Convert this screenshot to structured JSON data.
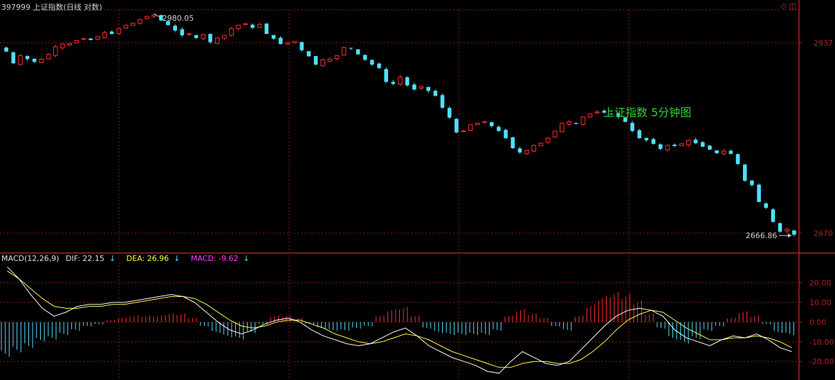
{
  "header": {
    "title": "397999 上证指数(日线 对数)",
    "annotation": "上证指数 5分钟图",
    "high_label": "2980.05",
    "low_label": "2666.86"
  },
  "macd_header": {
    "name": "MACD(12,26,9)",
    "dif": "DIF: 22.15",
    "dea": "DEA: 26.96",
    "macd": "MACD: -9.62"
  },
  "colors": {
    "up": "#ff3030",
    "down": "#50e0ff",
    "dif": "#ffffff",
    "dea": "#ffff40",
    "grid": "#8b1a1a",
    "axis": "#b02020",
    "annotation": "#30d030"
  },
  "chart_data": [
    {
      "type": "candlestick",
      "title": "397999 上证指数(日线 对数)",
      "ylim": [
        2656,
        2986
      ],
      "yticks": [
        2937,
        2670
      ],
      "ytick_labels": [
        "2937",
        "2670"
      ],
      "y_scale": "log",
      "grid": true,
      "annotations": [
        "2980.05",
        "2666.86"
      ],
      "close": [
        2924,
        2907,
        2918,
        2913,
        2909,
        2913,
        2920,
        2931,
        2935,
        2936,
        2940,
        2943,
        2941,
        2946,
        2952,
        2950,
        2958,
        2963,
        2966,
        2971,
        2976,
        2978,
        2970,
        2963,
        2955,
        2948,
        2950,
        2944,
        2949,
        2938,
        2944,
        2948,
        2958,
        2963,
        2965,
        2959,
        2964,
        2950,
        2943,
        2935,
        2937,
        2939,
        2926,
        2917,
        2905,
        2912,
        2913,
        2918,
        2930,
        2929,
        2920,
        2912,
        2905,
        2900,
        2880,
        2877,
        2887,
        2875,
        2869,
        2873,
        2867,
        2860,
        2843,
        2829,
        2808,
        2810,
        2819,
        2821,
        2823,
        2817,
        2810,
        2800,
        2786,
        2780,
        2783,
        2790,
        2793,
        2800,
        2810,
        2821,
        2823,
        2820,
        2830,
        2834,
        2837,
        2836,
        2834,
        2830,
        2823,
        2810,
        2800,
        2797,
        2792,
        2785,
        2790,
        2789,
        2792,
        2797,
        2793,
        2788,
        2784,
        2779,
        2782,
        2778,
        2764,
        2741,
        2735,
        2712,
        2704,
        2685,
        2672,
        2675,
        2668
      ],
      "bar_count": 113
    },
    {
      "type": "line",
      "title": "MACD(12,26,9)",
      "ylim": [
        -28,
        30
      ],
      "yticks": [
        20,
        10,
        0,
        -10,
        -20
      ],
      "ytick_labels": [
        "20.00",
        "10.00",
        "0.00",
        "-10.00",
        "-20.00"
      ],
      "series": [
        {
          "name": "DIF",
          "values": [
            28,
            22,
            14,
            7,
            3,
            5,
            8,
            9,
            9,
            10,
            10,
            11,
            12,
            13,
            14,
            13,
            10,
            5,
            0,
            -4,
            -6,
            -4,
            -1,
            1,
            2,
            0,
            -4,
            -7,
            -9,
            -11,
            -12,
            -11,
            -8,
            -5,
            -3,
            -7,
            -12,
            -15,
            -18,
            -20,
            -22,
            -25,
            -26,
            -20,
            -15,
            -18,
            -21,
            -22,
            -20,
            -14,
            -8,
            -2,
            3,
            6,
            7,
            6,
            3,
            -4,
            -8,
            -10,
            -12,
            -9,
            -7,
            -8,
            -6,
            -9,
            -13,
            -15
          ]
        },
        {
          "name": "DEA",
          "values": [
            26,
            22,
            17,
            12,
            8,
            7,
            7,
            8,
            8,
            9,
            9,
            10,
            11,
            12,
            13,
            13,
            12,
            9,
            5,
            1,
            -2,
            -3,
            -2,
            0,
            1,
            1,
            -1,
            -3,
            -6,
            -8,
            -10,
            -11,
            -10,
            -8,
            -6,
            -7,
            -9,
            -12,
            -15,
            -17,
            -19,
            -21,
            -23,
            -23,
            -21,
            -20,
            -20,
            -21,
            -21,
            -19,
            -15,
            -10,
            -4,
            1,
            4,
            6,
            5,
            1,
            -3,
            -6,
            -9,
            -9,
            -8,
            -8,
            -7,
            -8,
            -10,
            -13
          ]
        },
        {
          "name": "MACD",
          "values": [
            -16,
            -14,
            -12,
            -9,
            -8,
            -6,
            -4,
            -2,
            -1,
            1,
            2,
            3,
            3,
            3,
            4,
            4,
            2,
            -2,
            -5,
            -7,
            -8,
            -5,
            -1,
            3,
            3,
            2,
            -1,
            -3,
            -4,
            -4,
            -3,
            -2,
            3,
            6,
            7,
            3,
            -3,
            -5,
            -6,
            -6,
            -6,
            -6,
            -4,
            3,
            6,
            4,
            2,
            -2,
            -4,
            3,
            8,
            12,
            14,
            13,
            10,
            4,
            -3,
            -8,
            -10,
            -8,
            -4,
            -2,
            2,
            5,
            3,
            -1,
            -5,
            -6
          ]
        }
      ]
    }
  ]
}
